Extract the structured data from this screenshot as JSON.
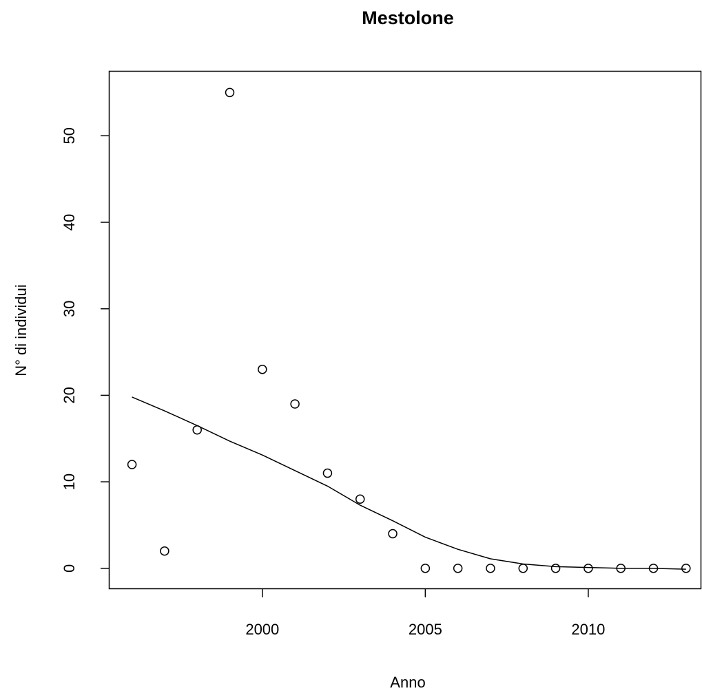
{
  "chart_data": {
    "type": "scatter",
    "title": "Mestolone",
    "xlabel": "Anno",
    "ylabel": "N° di individui",
    "x": [
      1996,
      1997,
      1998,
      1999,
      2000,
      2001,
      2002,
      2003,
      2004,
      2005,
      2006,
      2007,
      2008,
      2009,
      2010,
      2011,
      2012,
      2013
    ],
    "series": [
      {
        "style": "points",
        "color": "#000000",
        "values": [
          12,
          2,
          16,
          55,
          23,
          19,
          11,
          8,
          4,
          0,
          0,
          0,
          0,
          0,
          0,
          0,
          0,
          0
        ]
      },
      {
        "style": "line",
        "color": "#000000",
        "values": [
          19.8,
          18.2,
          16.5,
          14.7,
          13.1,
          11.3,
          9.5,
          7.3,
          5.5,
          3.6,
          2.2,
          1.1,
          0.5,
          0.2,
          0.1,
          0,
          0,
          -0.1
        ]
      }
    ],
    "xlim": [
      1995.29,
      2013.49
    ],
    "ylim": [
      -2.4,
      57.5
    ],
    "xticks": [
      2000,
      2005,
      2010
    ],
    "yticks": [
      0,
      10,
      20,
      30,
      40,
      50
    ]
  }
}
